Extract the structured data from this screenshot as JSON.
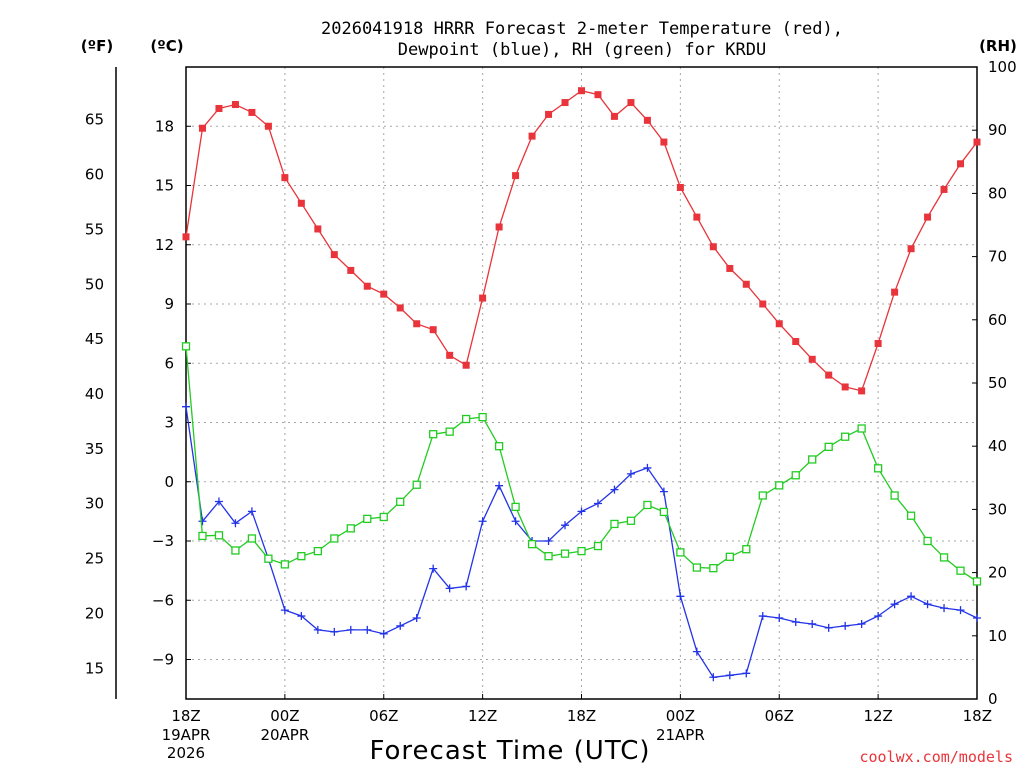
{
  "chart_data": {
    "type": "line",
    "title_line1": "2026041918 HRRR Forecast 2-meter Temperature (red),",
    "title_line2": "Dewpoint (blue), RH (green) for KRDU",
    "xlabel": "Forecast Time (UTC)",
    "left_outer_unit": "(ºF)",
    "left_inner_unit": "(ºC)",
    "right_unit": "(RH)",
    "watermark": "coolwx.com/models",
    "x_hours": [
      0,
      1,
      2,
      3,
      4,
      5,
      6,
      7,
      8,
      9,
      10,
      11,
      12,
      13,
      14,
      15,
      16,
      17,
      18,
      19,
      20,
      21,
      22,
      23,
      24,
      25,
      26,
      27,
      28,
      29,
      30,
      31,
      32,
      33,
      34,
      35,
      36,
      37,
      38,
      39,
      40,
      41,
      42,
      43,
      44,
      45,
      46,
      47,
      48
    ],
    "x_ticks": [
      {
        "hour": 0,
        "label": "18Z",
        "line2": "19APR",
        "line3": "2026"
      },
      {
        "hour": 6,
        "label": "00Z",
        "line2": "20APR",
        "line3": ""
      },
      {
        "hour": 12,
        "label": "06Z",
        "line2": "",
        "line3": ""
      },
      {
        "hour": 18,
        "label": "12Z",
        "line2": "",
        "line3": ""
      },
      {
        "hour": 24,
        "label": "18Z",
        "line2": "",
        "line3": ""
      },
      {
        "hour": 30,
        "label": "00Z",
        "line2": "21APR",
        "line3": ""
      },
      {
        "hour": 36,
        "label": "06Z",
        "line2": "",
        "line3": ""
      },
      {
        "hour": 42,
        "label": "12Z",
        "line2": "",
        "line3": ""
      },
      {
        "hour": 48,
        "label": "18Z",
        "line2": "",
        "line3": ""
      }
    ],
    "ylim_c": [
      -11,
      21
    ],
    "ylim_rh": [
      0,
      100
    ],
    "celsius_ticks": [
      18,
      15,
      12,
      9,
      6,
      3,
      0,
      -3,
      -6,
      -9
    ],
    "celsius_labels": [
      "18",
      "15",
      "12",
      "9",
      "6",
      "3",
      "0",
      "−3",
      "−6",
      "−9"
    ],
    "fahrenheit_ticks": [
      65,
      60,
      55,
      50,
      45,
      40,
      35,
      30,
      25,
      20,
      15
    ],
    "rh_ticks": [
      100,
      90,
      80,
      70,
      60,
      50,
      40,
      30,
      20,
      10,
      0
    ],
    "series": [
      {
        "name": "Temperature",
        "unit": "C",
        "color": "#e8343a",
        "marker": "filled-square",
        "values": [
          12.4,
          17.9,
          18.9,
          19.1,
          18.7,
          18.0,
          15.4,
          14.1,
          12.8,
          11.5,
          10.7,
          9.9,
          9.5,
          8.8,
          8.0,
          7.7,
          6.4,
          5.9,
          9.3,
          12.9,
          15.5,
          17.5,
          18.6,
          19.2,
          19.8,
          19.6,
          18.5,
          19.2,
          18.3,
          17.2,
          14.9,
          13.4,
          11.9,
          10.8,
          10.0,
          9.0,
          8.0,
          7.1,
          6.2,
          5.4,
          4.8,
          4.6,
          7.0,
          9.6,
          11.8,
          13.4,
          14.8,
          16.1,
          17.2
        ]
      },
      {
        "name": "Dewpoint",
        "unit": "C",
        "color": "#2233e8",
        "marker": "plus",
        "values": [
          3.8,
          -2.0,
          -1.0,
          -2.1,
          -1.5,
          -3.9,
          -6.5,
          -6.8,
          -7.5,
          -7.6,
          -7.5,
          -7.5,
          -7.7,
          -7.3,
          -6.9,
          -4.4,
          -5.4,
          -5.3,
          -2.0,
          -0.2,
          -2.0,
          -3.0,
          -3.0,
          -2.2,
          -1.5,
          -1.1,
          -0.4,
          0.4,
          0.7,
          -0.5,
          -5.8,
          -8.6,
          -9.9,
          -9.8,
          -9.7,
          -6.8,
          -6.9,
          -7.1,
          -7.2,
          -7.4,
          -7.3,
          -7.2,
          -6.8,
          -6.2,
          -5.8,
          -6.2,
          -6.4,
          -6.5,
          -6.9
        ]
      },
      {
        "name": "RH",
        "unit": "%",
        "color": "#22cc22",
        "marker": "open-square",
        "values": [
          55.8,
          25.8,
          25.9,
          23.5,
          25.4,
          22.2,
          21.3,
          22.6,
          23.4,
          25.4,
          27.0,
          28.5,
          28.8,
          31.2,
          33.9,
          41.9,
          42.3,
          44.3,
          44.6,
          40.0,
          30.4,
          24.5,
          22.6,
          23.0,
          23.4,
          24.2,
          27.7,
          28.2,
          30.7,
          29.6,
          23.2,
          20.8,
          20.7,
          22.5,
          23.7,
          32.2,
          33.8,
          35.4,
          37.9,
          39.9,
          41.5,
          42.8,
          36.5,
          32.2,
          29.0,
          25.0,
          22.4,
          20.3,
          18.6
        ]
      }
    ]
  }
}
